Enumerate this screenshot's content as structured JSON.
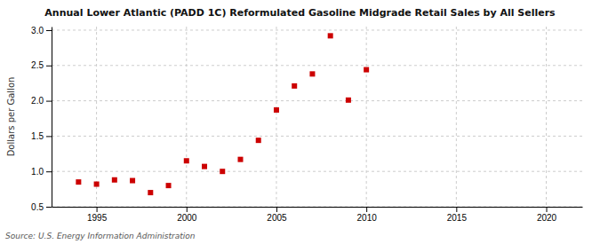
{
  "chart_data": {
    "type": "scatter",
    "title": "Annual Lower Atlantic (PADD 1C) Reformulated Gasoline Midgrade Retail Sales by All Sellers",
    "ylabel": "Dollars per Gallon",
    "annotations": [
      "Source: U.S. Energy Information Administration"
    ],
    "x": [
      1994,
      1995,
      1996,
      1997,
      1998,
      1999,
      2000,
      2001,
      2002,
      2003,
      2004,
      2005,
      2006,
      2007,
      2008,
      2009,
      2010
    ],
    "values": [
      0.85,
      0.82,
      0.88,
      0.87,
      0.7,
      0.8,
      1.15,
      1.07,
      1.0,
      1.17,
      1.44,
      1.87,
      2.21,
      2.38,
      2.92,
      2.01,
      2.44
    ],
    "color": "#cc0000",
    "marker": "square",
    "xlim": [
      1992.5,
      2022
    ],
    "ylim": [
      0.5,
      3.05
    ],
    "xticks": [
      1995,
      2000,
      2005,
      2010,
      2015,
      2020
    ],
    "yticks": [
      0.5,
      {
        "value": 1.0,
        "label": "1.0"
      },
      1.5,
      {
        "value": 2.0,
        "label": "2.0"
      },
      2.5,
      {
        "value": 3.0,
        "label": "3.0"
      }
    ],
    "grid": true
  }
}
